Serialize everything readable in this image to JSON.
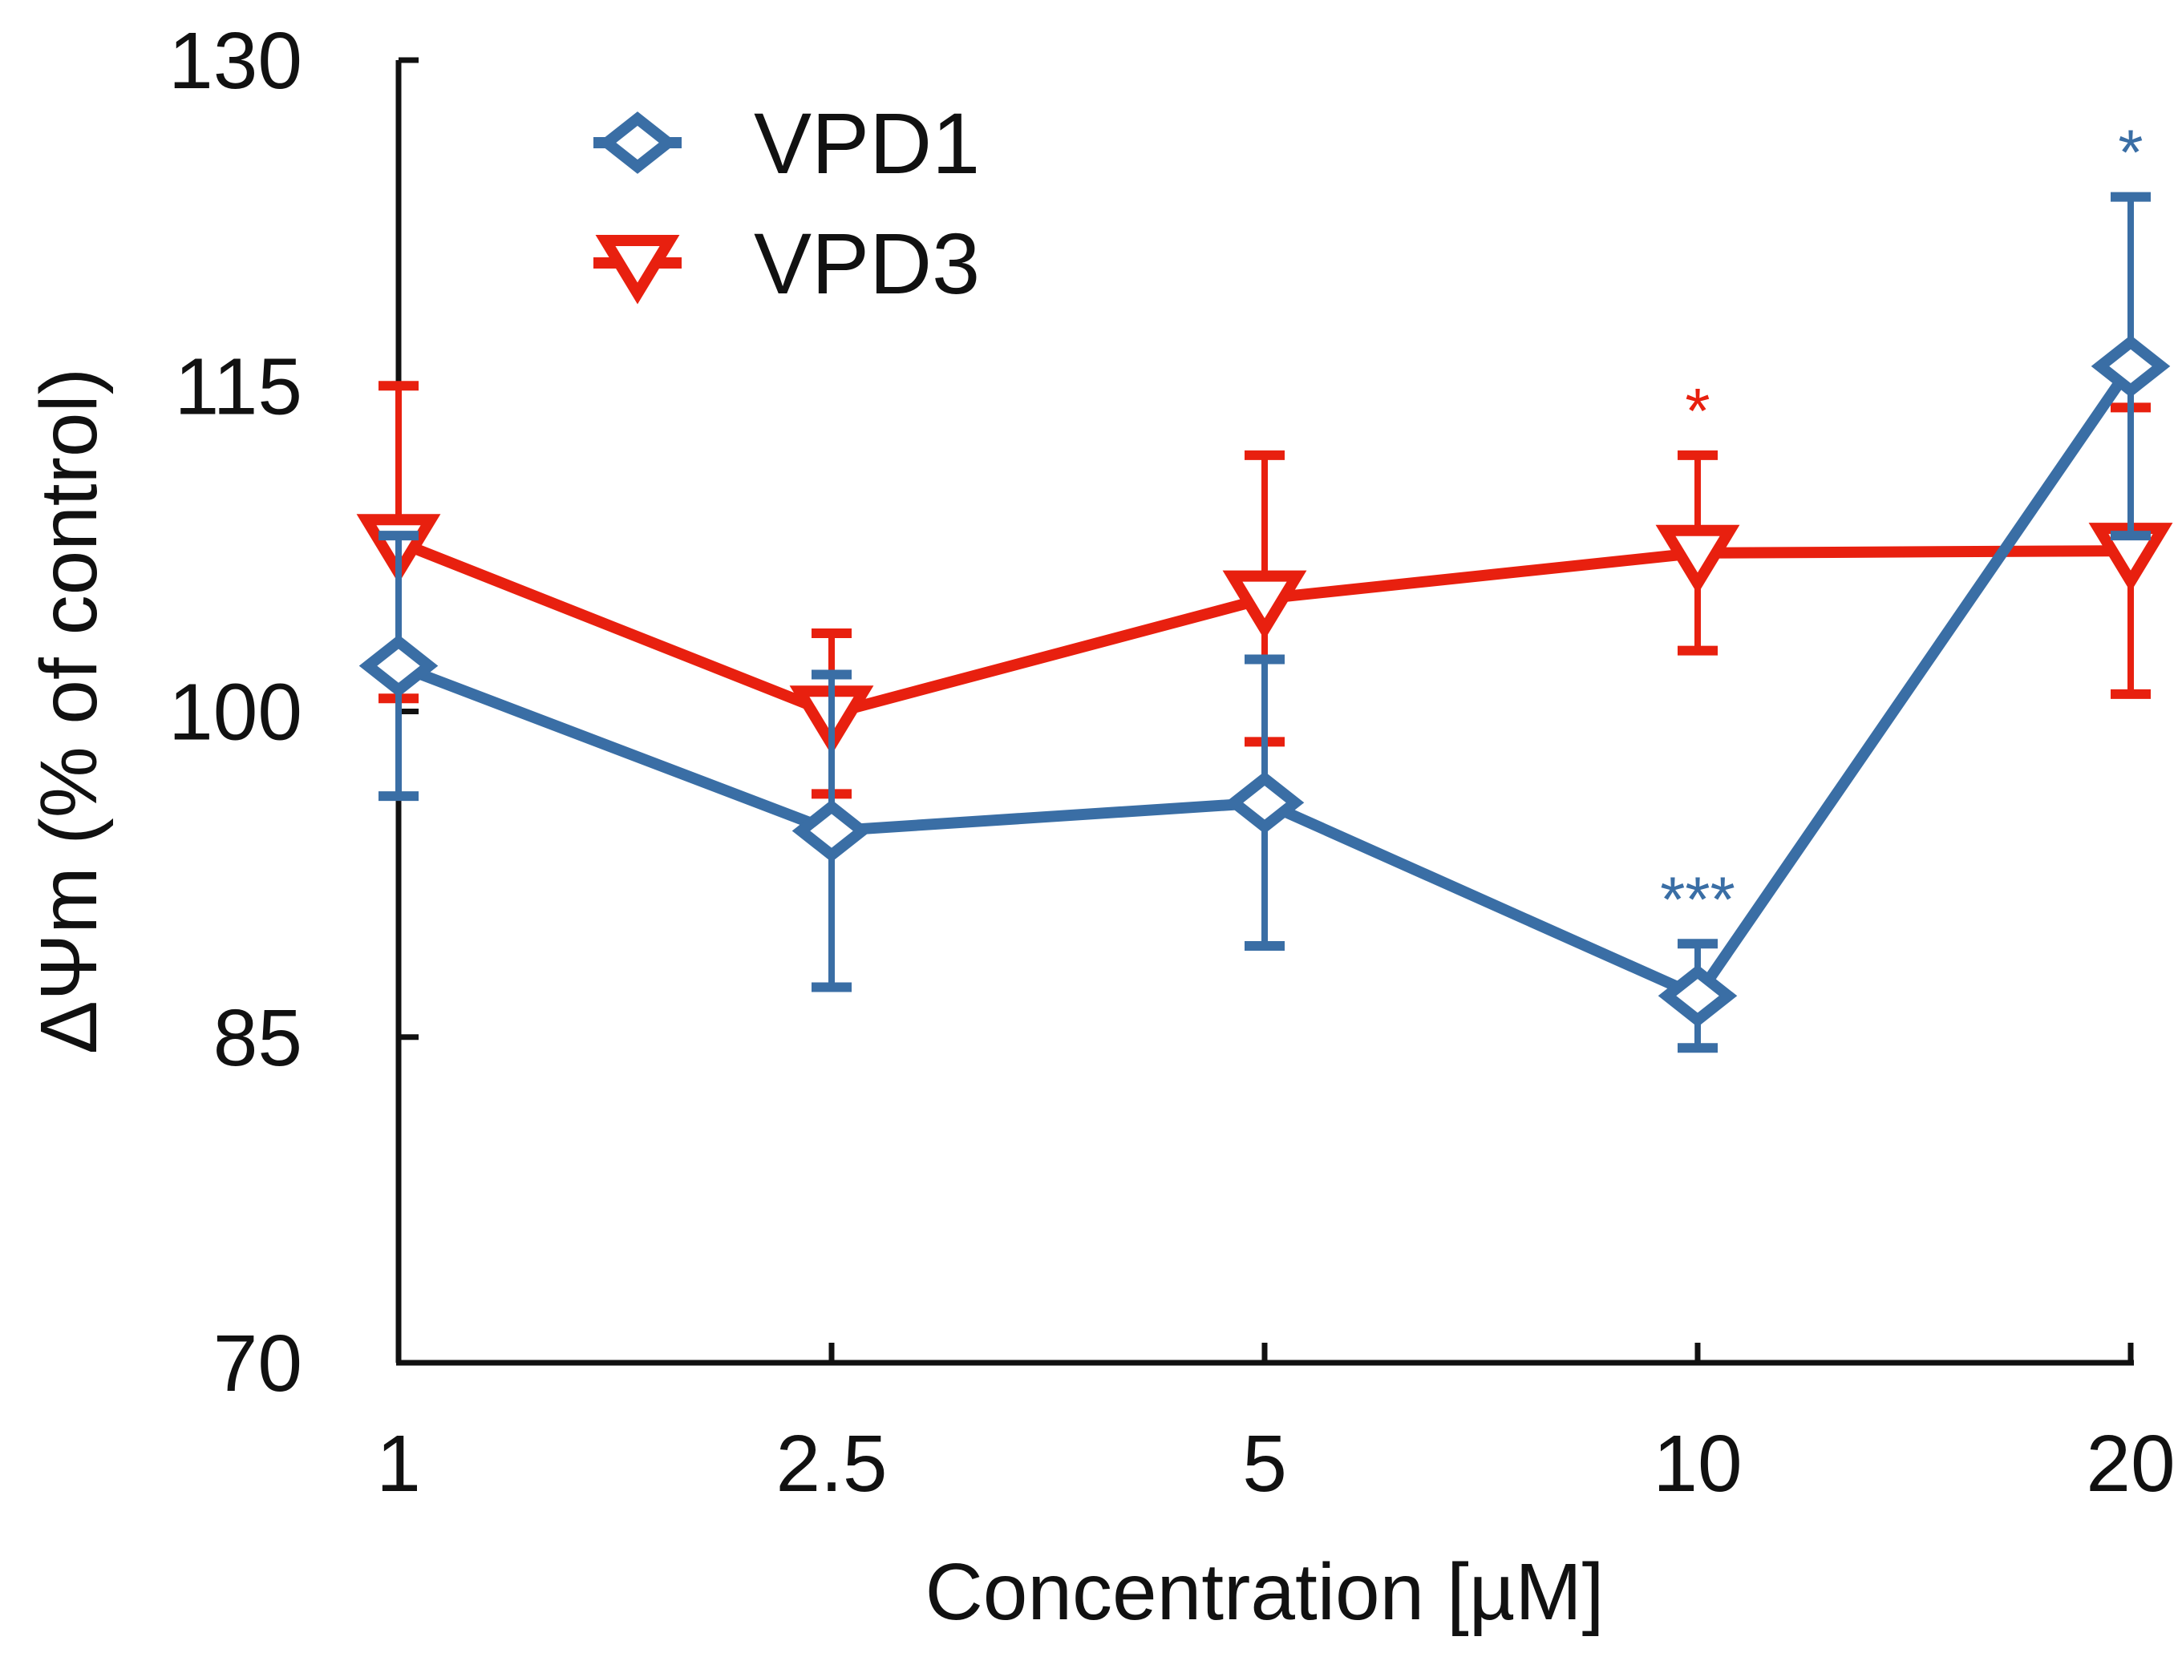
{
  "chart_data": {
    "type": "line",
    "title": "",
    "xlabel": "Concentration [µM]",
    "ylabel": "ΔΨm (% of control)",
    "categories": [
      "1",
      "2.5",
      "5",
      "10",
      "20"
    ],
    "ylim": [
      70,
      130
    ],
    "yticks": [
      "70",
      "85",
      "100",
      "115",
      "130"
    ],
    "grid": false,
    "legend_position": "top-left",
    "series": [
      {
        "name": "VPD1",
        "color": "#3a6ea5",
        "marker": "diamond",
        "values": [
          102.1,
          94.5,
          95.8,
          86.9,
          115.9
        ],
        "errors": [
          6.0,
          7.2,
          6.6,
          2.4,
          7.8
        ],
        "annotations": [
          "",
          "",
          "",
          "***",
          "*"
        ]
      },
      {
        "name": "VPD3",
        "color": "#e8200f",
        "marker": "triangle-down",
        "values": [
          107.8,
          99.9,
          105.2,
          107.3,
          107.4
        ],
        "errors": [
          7.2,
          3.7,
          6.6,
          4.5,
          6.6
        ],
        "annotations": [
          "",
          "",
          "",
          "*",
          ""
        ]
      }
    ]
  }
}
